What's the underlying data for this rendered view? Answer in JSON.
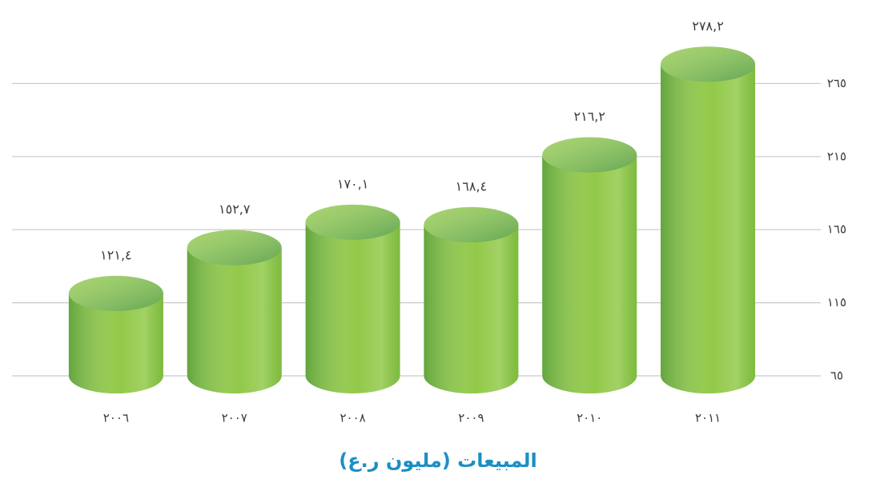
{
  "chart_data": {
    "type": "bar",
    "title": "المبيعات (مليون ر.ع)",
    "categories": [
      "٢٠٠٦",
      "٢٠٠٧",
      "٢٠٠٨",
      "٢٠٠٩",
      "٢٠١٠",
      "٢٠١١"
    ],
    "values": [
      121.4,
      152.7,
      170.1,
      168.4,
      216.2,
      278.2
    ],
    "value_labels": [
      "١٢١,٤",
      "١٥٢,٧",
      "١٧٠,١",
      "١٦٨,٤",
      "٢١٦,٢",
      "٢٧٨,٢"
    ],
    "color": "#8cc63f",
    "ylim": [
      65,
      280
    ],
    "yticks": [
      {
        "value": 65,
        "label": "٦٥"
      },
      {
        "value": 115,
        "label": "١١٥"
      },
      {
        "value": 165,
        "label": "١٦٥"
      },
      {
        "value": 215,
        "label": "٢١٥"
      },
      {
        "value": 265,
        "label": "٢٦٥"
      }
    ],
    "grid": true
  }
}
